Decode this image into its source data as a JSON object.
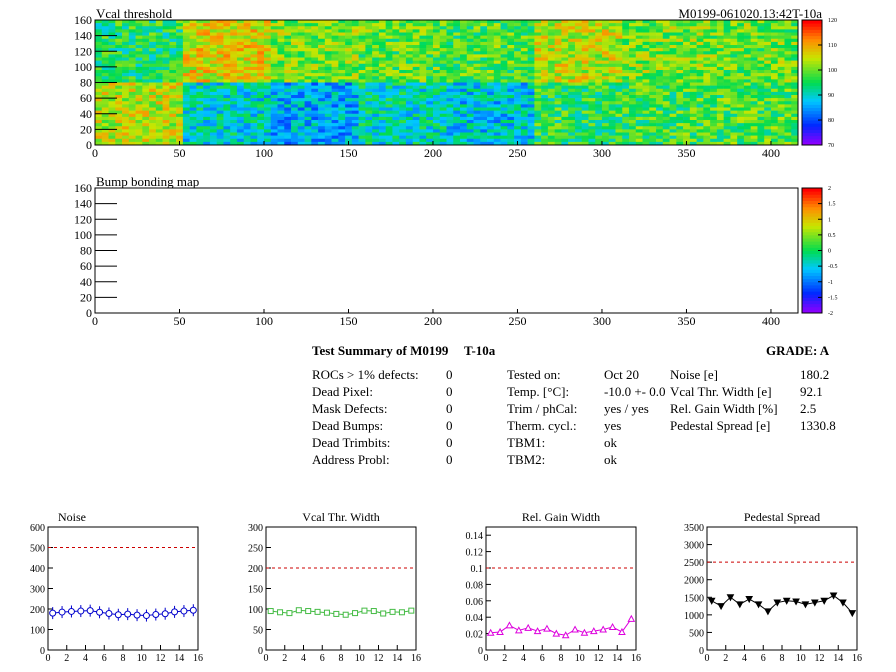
{
  "maps": [
    {
      "title": "Vcal threshold",
      "run_label": "M0199-061020.13:42T-10a",
      "x_ticks": [
        "0",
        "50",
        "100",
        "150",
        "200",
        "250",
        "300",
        "350",
        "400"
      ],
      "y_ticks": [
        "0",
        "20",
        "40",
        "60",
        "80",
        "100",
        "120",
        "140",
        "160"
      ],
      "palette_ticks": [
        "70",
        "80",
        "90",
        "100",
        "110",
        "120"
      ],
      "palette_range": [
        70,
        125
      ],
      "roc_upper_means": [
        98,
        110,
        104,
        102,
        101,
        108,
        104,
        103
      ],
      "roc_lower_means": [
        108,
        92,
        88,
        93,
        90,
        99,
        100,
        101
      ]
    },
    {
      "title": "Bump bonding map",
      "x_ticks": [
        "0",
        "50",
        "100",
        "150",
        "200",
        "250",
        "300",
        "350",
        "400"
      ],
      "y_ticks": [
        "0",
        "20",
        "40",
        "60",
        "80",
        "100",
        "120",
        "140",
        "160"
      ],
      "palette_ticks": [
        "-2",
        "-1.5",
        "-1",
        "-0.5",
        "0",
        "0.5",
        "1",
        "1.5",
        "2"
      ]
    }
  ],
  "summary": {
    "title": "Test Summary of M0199",
    "tag": "T-10a",
    "grade": "GRADE:  A",
    "defects": [
      {
        "label": "ROCs > 1% defects:",
        "value": "0"
      },
      {
        "label": "Dead Pixel:",
        "value": "0"
      },
      {
        "label": "Mask Defects:",
        "value": "0"
      },
      {
        "label": "Dead Bumps:",
        "value": "0"
      },
      {
        "label": "Dead Trimbits:",
        "value": "0"
      },
      {
        "label": "Address Probl:",
        "value": "0"
      }
    ],
    "conditions": [
      {
        "label": "Tested on:",
        "value": "Oct 20"
      },
      {
        "label": "Temp. [°C]:",
        "value": "-10.0 +- 0.0"
      },
      {
        "label": "Trim / phCal:",
        "value": "yes / yes"
      },
      {
        "label": "Therm. cycl.:",
        "value": "yes"
      },
      {
        "label": "TBM1:",
        "value": "ok"
      },
      {
        "label": "TBM2:",
        "value": "ok"
      }
    ],
    "results": [
      {
        "label": "Noise [e]",
        "value": "180.2"
      },
      {
        "label": "Vcal Thr. Width [e]",
        "value": "92.1"
      },
      {
        "label": "Rel. Gain Width [%]",
        "value": "2.5"
      },
      {
        "label": "Pedestal Spread [e]",
        "value": "1330.8"
      }
    ]
  },
  "chart_data": [
    {
      "type": "line",
      "title": "Noise",
      "x": [
        0,
        1,
        2,
        3,
        4,
        5,
        6,
        7,
        8,
        9,
        10,
        11,
        12,
        13,
        14,
        15
      ],
      "values": [
        180,
        185,
        188,
        190,
        192,
        184,
        178,
        172,
        175,
        170,
        168,
        173,
        177,
        186,
        190,
        194
      ],
      "limit": 500,
      "ylim": [
        0,
        600
      ],
      "xlim": [
        0,
        16
      ],
      "y_ticks": [
        "0",
        "100",
        "200",
        "300",
        "400",
        "500",
        "600"
      ],
      "x_ticks": [
        "0",
        "2",
        "4",
        "6",
        "8",
        "10",
        "12",
        "14",
        "16"
      ],
      "color": "#0000cc",
      "marker": "circle"
    },
    {
      "type": "line",
      "title": "Vcal Thr. Width",
      "x": [
        0,
        1,
        2,
        3,
        4,
        5,
        6,
        7,
        8,
        9,
        10,
        11,
        12,
        13,
        14,
        15
      ],
      "values": [
        95,
        92,
        90,
        97,
        95,
        93,
        91,
        88,
        86,
        90,
        96,
        95,
        89,
        93,
        92,
        96
      ],
      "limit": 200,
      "ylim": [
        0,
        300
      ],
      "xlim": [
        0,
        16
      ],
      "y_ticks": [
        "0",
        "50",
        "100",
        "150",
        "200",
        "250",
        "300"
      ],
      "x_ticks": [
        "0",
        "2",
        "4",
        "6",
        "8",
        "10",
        "12",
        "14",
        "16"
      ],
      "color": "#44bb44",
      "marker": "square"
    },
    {
      "type": "line",
      "title": "Rel. Gain Width",
      "x": [
        0,
        1,
        2,
        3,
        4,
        5,
        6,
        7,
        8,
        9,
        10,
        11,
        12,
        13,
        14,
        15
      ],
      "values": [
        0.021,
        0.022,
        0.03,
        0.024,
        0.027,
        0.023,
        0.026,
        0.02,
        0.018,
        0.025,
        0.021,
        0.023,
        0.025,
        0.028,
        0.022,
        0.038
      ],
      "limit": 0.1,
      "ylim": [
        0,
        0.15
      ],
      "xlim": [
        0,
        16
      ],
      "y_ticks": [
        "0",
        "0.02",
        "0.04",
        "0.06",
        "0.08",
        "0.1",
        "0.12",
        "0.14"
      ],
      "x_ticks": [
        "0",
        "2",
        "4",
        "6",
        "8",
        "10",
        "12",
        "14",
        "16"
      ],
      "color": "#dd00dd",
      "marker": "triangle"
    },
    {
      "type": "line",
      "title": "Pedestal Spread",
      "x": [
        0,
        1,
        2,
        3,
        4,
        5,
        6,
        7,
        8,
        9,
        10,
        11,
        12,
        13,
        14,
        15
      ],
      "values": [
        1400,
        1250,
        1500,
        1300,
        1450,
        1300,
        1100,
        1350,
        1400,
        1380,
        1300,
        1350,
        1400,
        1550,
        1350,
        1050
      ],
      "limit": 2500,
      "ylim": [
        0,
        3500
      ],
      "xlim": [
        0,
        16
      ],
      "y_ticks": [
        "0",
        "500",
        "1000",
        "1500",
        "2000",
        "2500",
        "3000",
        "3500"
      ],
      "x_ticks": [
        "0",
        "2",
        "4",
        "6",
        "8",
        "10",
        "12",
        "14",
        "16"
      ],
      "color": "#000000",
      "marker": "triangle-down"
    }
  ]
}
